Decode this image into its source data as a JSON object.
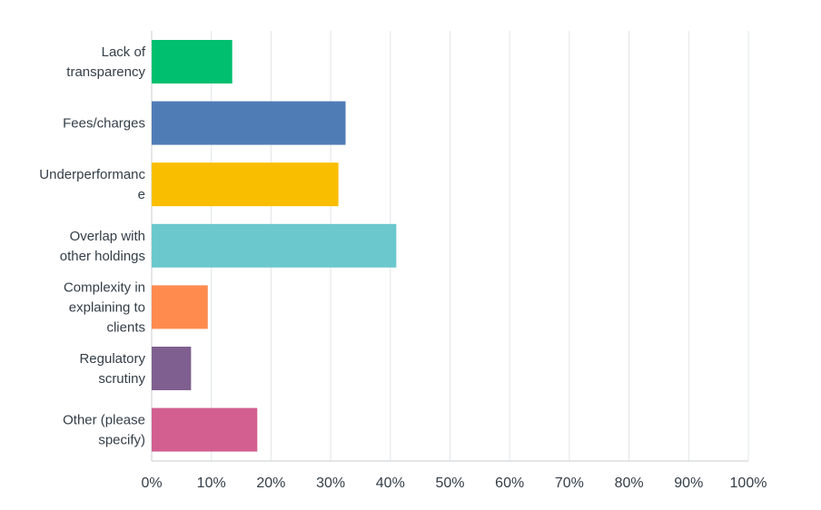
{
  "chart_data": {
    "type": "bar",
    "orientation": "horizontal",
    "categories": [
      "Lack of transparency",
      "Fees/charges",
      "Underperformance",
      "Overlap with other holdings",
      "Complexity in explaining to clients",
      "Regulatory scrutiny",
      "Other (please specify)"
    ],
    "category_label_lines": [
      [
        "Lack of",
        "transparency"
      ],
      [
        "Fees/charges"
      ],
      [
        "Underperformanc",
        "e"
      ],
      [
        "Overlap with",
        "other holdings"
      ],
      [
        "Complexity in",
        "explaining to",
        "clients"
      ],
      [
        "Regulatory",
        "scrutiny"
      ],
      [
        "Other (please",
        "specify)"
      ]
    ],
    "values": [
      13.5,
      32.5,
      31.3,
      41.0,
      9.4,
      6.6,
      17.7
    ],
    "colors": [
      "#00bf6f",
      "#507cb6",
      "#f9be00",
      "#6bc8cd",
      "#ff8b4f",
      "#7f5f90",
      "#d25f90"
    ],
    "x_ticks": [
      "0%",
      "10%",
      "20%",
      "30%",
      "40%",
      "50%",
      "60%",
      "70%",
      "80%",
      "90%",
      "100%"
    ],
    "xlim": [
      0,
      100
    ],
    "grid": true,
    "title": "",
    "xlabel": "",
    "ylabel": ""
  }
}
